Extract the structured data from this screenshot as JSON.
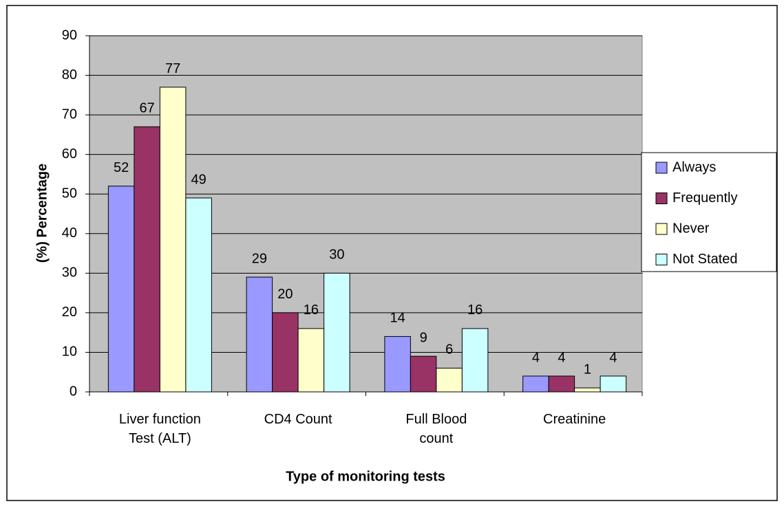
{
  "chart_data": {
    "type": "bar",
    "categories": [
      "Liver function Test (ALT)",
      "CD4 Count",
      "Full Blood count",
      "Creatinine"
    ],
    "series": [
      {
        "name": "Always",
        "color": "#9999ff",
        "values": [
          52,
          29,
          14,
          4
        ]
      },
      {
        "name": "Frequently",
        "color": "#993366",
        "values": [
          67,
          20,
          9,
          4
        ]
      },
      {
        "name": "Never",
        "color": "#ffffcc",
        "values": [
          77,
          16,
          6,
          1
        ]
      },
      {
        "name": "Not Stated",
        "color": "#ccffff",
        "values": [
          49,
          30,
          16,
          4
        ]
      }
    ],
    "x_label": "Type of monitoring tests",
    "y_label": "(%) Percentage",
    "ylim": [
      0,
      90
    ],
    "yticks": [
      0,
      10,
      20,
      30,
      40,
      50,
      60,
      70,
      80,
      90
    ],
    "grid": true,
    "legend": "right",
    "plot_background": "#c0c0c0"
  }
}
